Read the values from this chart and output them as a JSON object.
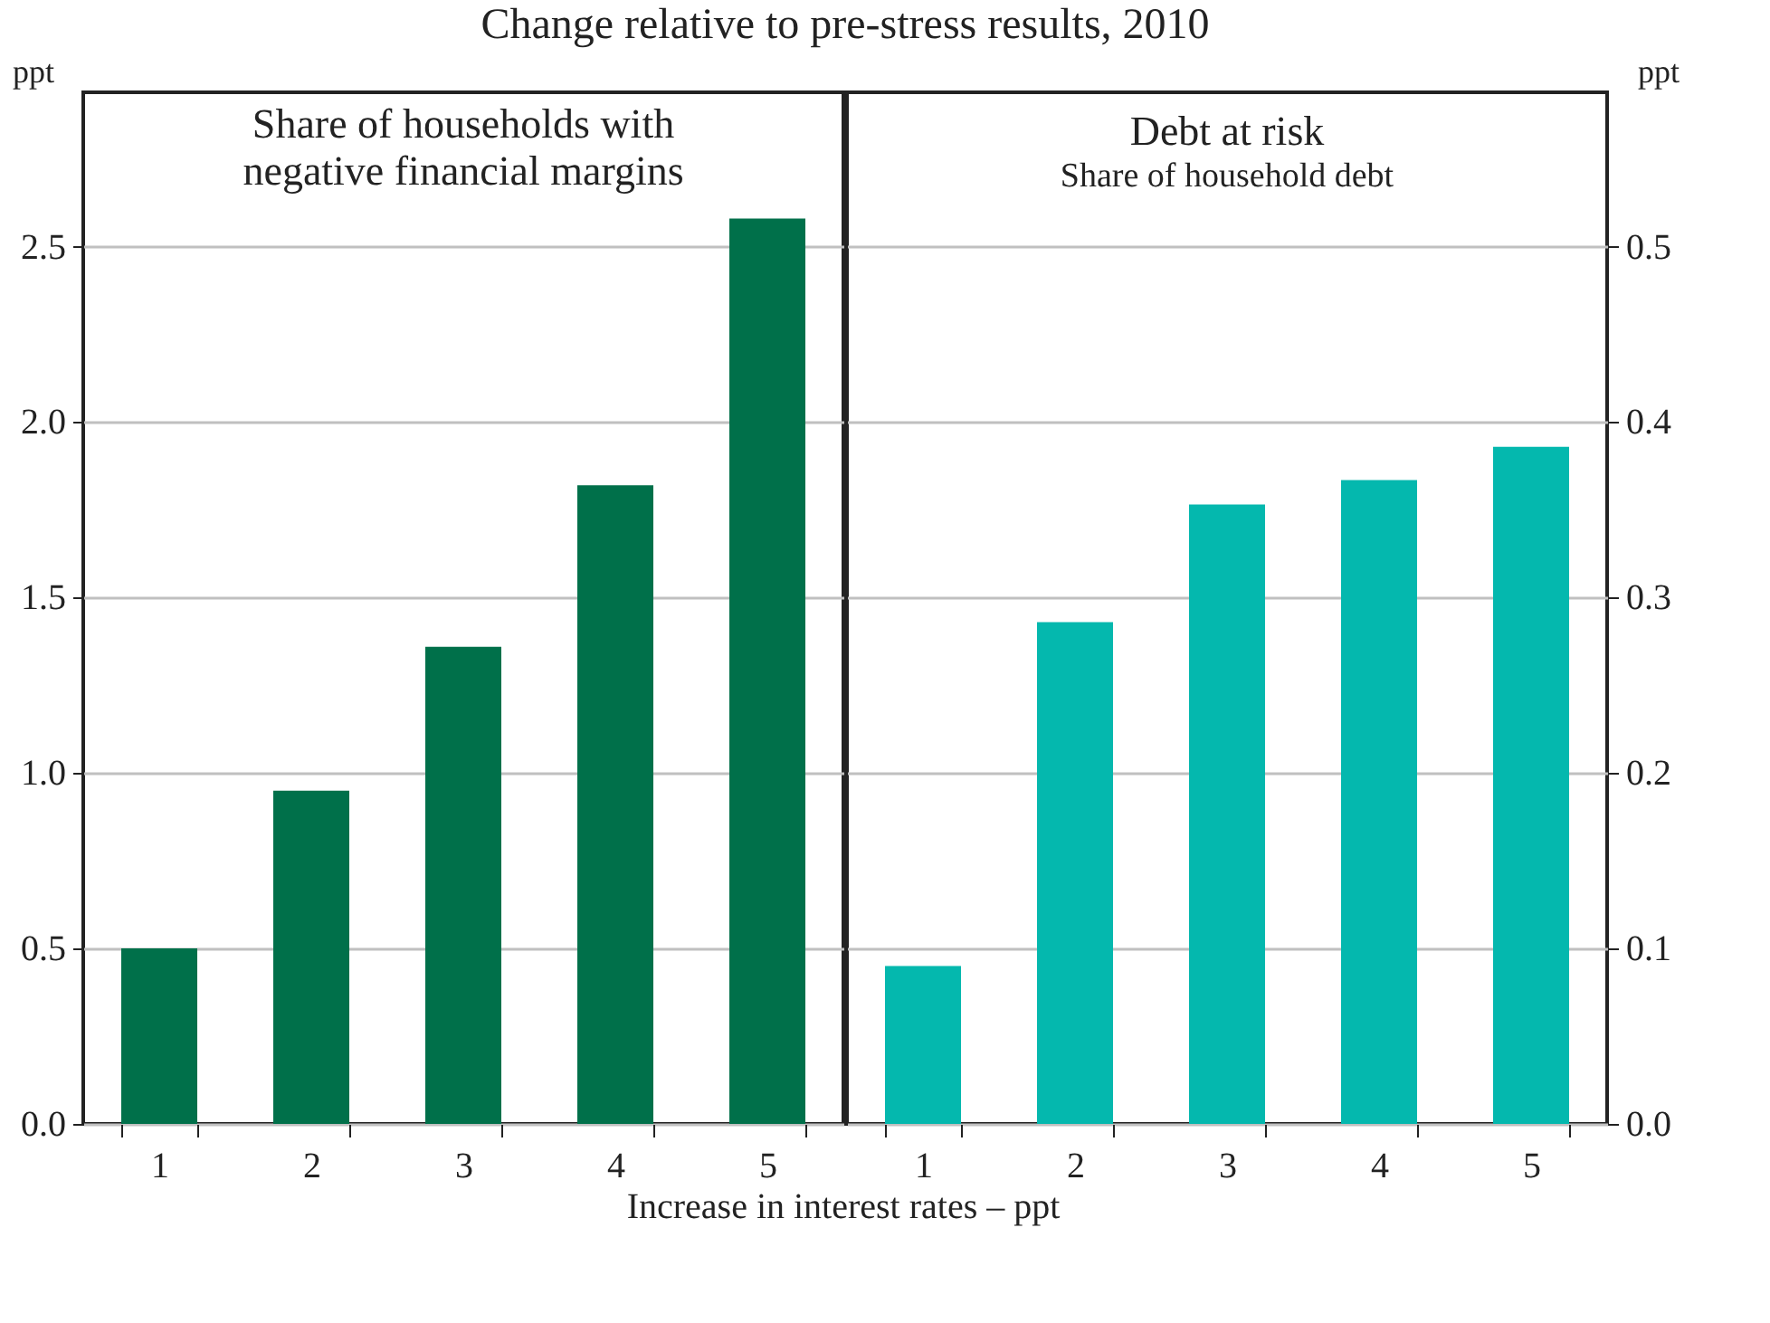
{
  "chart_data": [
    {
      "type": "bar",
      "title": "Share of households with\nnegative financial margins",
      "annotations": [
        "Change relative to pre-stress results, 2010"
      ],
      "xlabel": "Increase in interest rates – ppt",
      "categories": [
        "1",
        "2",
        "3",
        "4",
        "5"
      ],
      "values": [
        0.5,
        0.95,
        1.36,
        1.82,
        2.58
      ],
      "color": "#00704a",
      "ylabel": "ppt",
      "ylim": [
        0,
        2.94
      ],
      "yticks": [
        {
          "value": 0,
          "label": "0.0"
        },
        0.5,
        {
          "value": 1,
          "label": "1.0"
        },
        1.5,
        {
          "value": 2,
          "label": "2.0"
        },
        2.5
      ],
      "grid": "y"
    },
    {
      "type": "bar",
      "title": "Debt at risk",
      "subtitle": "Share of household debt",
      "categories": [
        "1",
        "2",
        "3",
        "4",
        "5"
      ],
      "values": [
        0.09,
        0.286,
        0.353,
        0.367,
        0.386
      ],
      "color": "#04b8ae",
      "ylabel": "ppt",
      "ylim": [
        0,
        0.588
      ],
      "yticks": [
        {
          "value": 0,
          "label": "0.0"
        },
        0.1,
        0.2,
        0.3,
        0.4,
        0.5
      ],
      "grid": "y"
    }
  ]
}
